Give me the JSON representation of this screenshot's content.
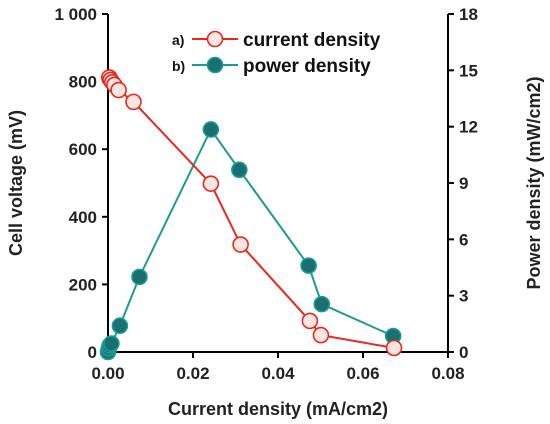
{
  "chart_data": {
    "type": "scatter",
    "xlabel": "Current density (mA/cm2)",
    "ylabel_left": "Cell voltage (mV)",
    "ylabel_right": "Power density (mW/cm2)",
    "xlim": [
      0,
      0.08
    ],
    "ylim_left": [
      0,
      1000
    ],
    "ylim_right": [
      0,
      18
    ],
    "x_ticks": [
      "0.00",
      "0.02",
      "0.04",
      "0.06",
      "0.08"
    ],
    "y_left_ticks": [
      "0",
      "200",
      "400",
      "600",
      "800",
      "1 000"
    ],
    "y_right_ticks": [
      "0",
      "3",
      "6",
      "9",
      "12",
      "15",
      "18"
    ],
    "grid": false,
    "legend_position": "top-center",
    "series": [
      {
        "name": "current density",
        "prefix": "a)",
        "axis": "left",
        "color": "#e8281e",
        "fill": "#fde6e1",
        "x": [
          0.0003,
          0.0006,
          0.001,
          0.0015,
          0.0025,
          0.006,
          0.0242,
          0.0312,
          0.0475,
          0.0501,
          0.0673
        ],
        "y": [
          812,
          805,
          798,
          790,
          775,
          740,
          498,
          318,
          92,
          50,
          12
        ]
      },
      {
        "name": "power density",
        "prefix": "b)",
        "axis": "right",
        "color": "#1c9a98",
        "fill": "#1a6f70",
        "x": [
          0.0,
          0.0002,
          0.0004,
          0.0008,
          0.0028,
          0.0074,
          0.0242,
          0.0309,
          0.0472,
          0.0503,
          0.0671
        ],
        "y": [
          0.0,
          0.2,
          0.35,
          0.45,
          1.4,
          4.0,
          11.85,
          9.7,
          4.6,
          2.55,
          0.85
        ]
      }
    ]
  }
}
